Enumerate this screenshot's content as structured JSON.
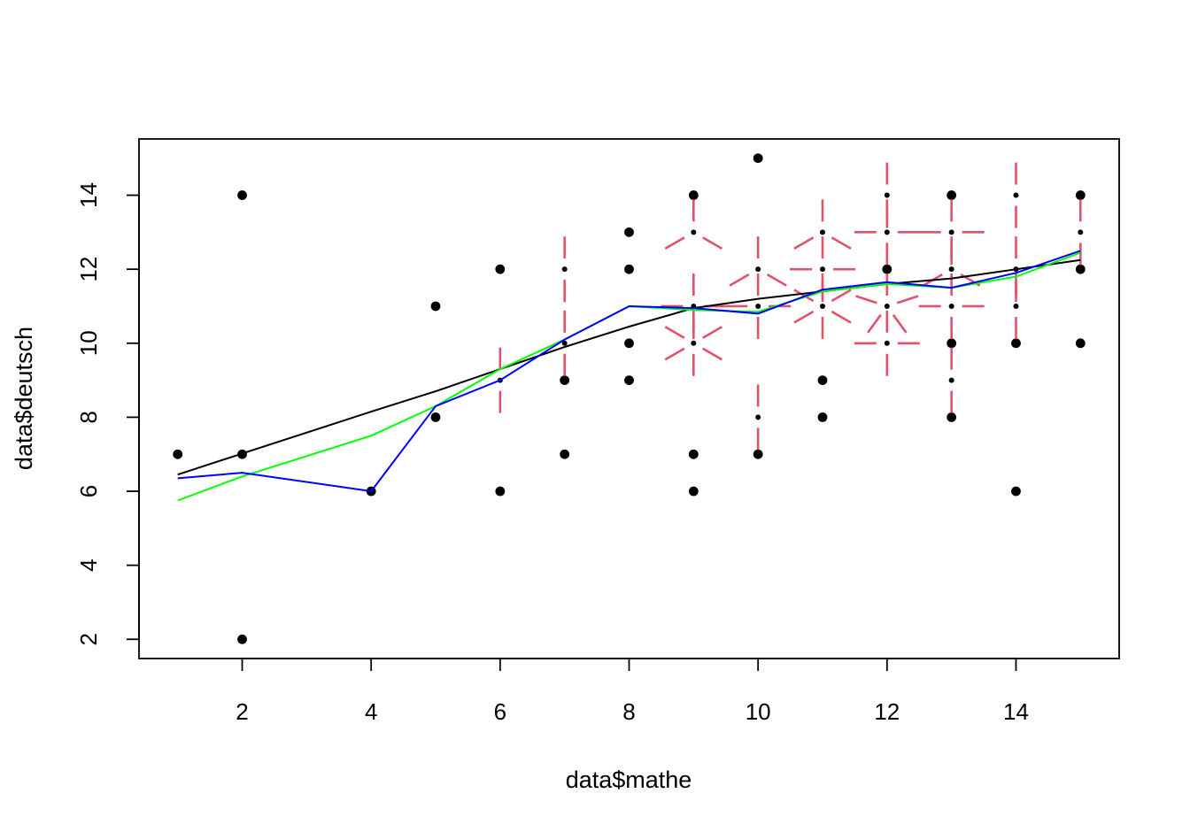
{
  "chart_data": {
    "type": "scatter",
    "title": "",
    "xlabel": "data$mathe",
    "ylabel": "data$deutsch",
    "xlim": [
      0.4,
      15.6
    ],
    "ylim": [
      1.48,
      15.52
    ],
    "xticks": [
      2,
      4,
      6,
      8,
      10,
      12,
      14
    ],
    "yticks": [
      2,
      4,
      6,
      8,
      10,
      12,
      14
    ],
    "grid": false,
    "legend": "none",
    "points": [
      [
        1,
        7
      ],
      [
        2,
        2
      ],
      [
        2,
        7
      ],
      [
        2,
        14
      ],
      [
        4,
        6
      ],
      [
        5,
        8
      ],
      [
        5,
        11
      ],
      [
        6,
        6
      ],
      [
        6,
        9
      ],
      [
        6,
        12
      ],
      [
        7,
        7
      ],
      [
        7,
        9
      ],
      [
        7,
        10
      ],
      [
        7,
        12
      ],
      [
        8,
        9
      ],
      [
        8,
        10
      ],
      [
        8,
        12
      ],
      [
        8,
        13
      ],
      [
        9,
        6
      ],
      [
        9,
        7
      ],
      [
        9,
        10
      ],
      [
        9,
        11
      ],
      [
        9,
        13
      ],
      [
        9,
        14
      ],
      [
        10,
        7
      ],
      [
        10,
        8
      ],
      [
        10,
        11
      ],
      [
        10,
        12
      ],
      [
        10,
        15
      ],
      [
        11,
        8
      ],
      [
        11,
        9
      ],
      [
        11,
        11
      ],
      [
        11,
        12
      ],
      [
        11,
        13
      ],
      [
        12,
        10
      ],
      [
        12,
        11
      ],
      [
        12,
        12
      ],
      [
        12,
        13
      ],
      [
        12,
        14
      ],
      [
        13,
        8
      ],
      [
        13,
        9
      ],
      [
        13,
        10
      ],
      [
        13,
        11
      ],
      [
        13,
        12
      ],
      [
        13,
        13
      ],
      [
        13,
        14
      ],
      [
        14,
        6
      ],
      [
        14,
        10
      ],
      [
        14,
        11
      ],
      [
        14,
        12
      ],
      [
        14,
        14
      ],
      [
        15,
        10
      ],
      [
        15,
        12
      ],
      [
        15,
        13
      ],
      [
        15,
        14
      ]
    ],
    "sunflowers": [
      {
        "x": 6,
        "y": 9,
        "petals": 2
      },
      {
        "x": 7,
        "y": 10,
        "petals": 2
      },
      {
        "x": 7,
        "y": 12,
        "petals": 2
      },
      {
        "x": 9,
        "y": 10,
        "petals": 6
      },
      {
        "x": 9,
        "y": 11,
        "petals": 4
      },
      {
        "x": 9,
        "y": 13,
        "petals": 3
      },
      {
        "x": 10,
        "y": 8,
        "petals": 2
      },
      {
        "x": 10,
        "y": 11,
        "petals": 4
      },
      {
        "x": 10,
        "y": 12,
        "petals": 3
      },
      {
        "x": 11,
        "y": 11,
        "petals": 6
      },
      {
        "x": 11,
        "y": 12,
        "petals": 4
      },
      {
        "x": 11,
        "y": 13,
        "petals": 3
      },
      {
        "x": 12,
        "y": 10,
        "petals": 4
      },
      {
        "x": 12,
        "y": 11,
        "petals": 5
      },
      {
        "x": 12,
        "y": 13,
        "petals": 4
      },
      {
        "x": 12,
        "y": 14,
        "petals": 2
      },
      {
        "x": 13,
        "y": 9,
        "petals": 2
      },
      {
        "x": 13,
        "y": 11,
        "petals": 4
      },
      {
        "x": 13,
        "y": 12,
        "petals": 3
      },
      {
        "x": 13,
        "y": 13,
        "petals": 4
      },
      {
        "x": 14,
        "y": 11,
        "petals": 2
      },
      {
        "x": 14,
        "y": 12,
        "petals": 2
      },
      {
        "x": 14,
        "y": 14,
        "petals": 2
      },
      {
        "x": 15,
        "y": 13,
        "petals": 2
      }
    ],
    "series": [
      {
        "color": "#000000",
        "x": [
          1,
          2,
          4,
          5,
          6,
          7,
          8,
          9,
          10,
          11,
          12,
          13,
          14,
          15
        ],
        "y": [
          6.45,
          7.02,
          8.15,
          8.7,
          9.3,
          9.9,
          10.45,
          10.95,
          11.2,
          11.4,
          11.6,
          11.75,
          12.0,
          12.25
        ]
      },
      {
        "color": "#00ff00",
        "x": [
          1,
          2,
          4,
          5,
          6,
          7,
          8,
          9,
          10,
          11,
          12,
          13,
          14,
          15
        ],
        "y": [
          5.75,
          6.4,
          7.5,
          8.3,
          9.3,
          10.1,
          11.0,
          10.9,
          10.85,
          11.4,
          11.6,
          11.5,
          11.8,
          12.45
        ]
      },
      {
        "color": "#0000ff",
        "x": [
          1,
          2,
          4,
          5,
          6,
          7,
          8,
          9,
          10,
          11,
          12,
          13,
          14,
          15
        ],
        "y": [
          6.35,
          6.5,
          6.0,
          8.3,
          9.0,
          10.1,
          11.0,
          10.95,
          10.8,
          11.45,
          11.65,
          11.5,
          11.9,
          12.5
        ]
      }
    ],
    "colors": {
      "points": "#000000",
      "sunflower": "#DF536B",
      "box": "#000000"
    }
  }
}
